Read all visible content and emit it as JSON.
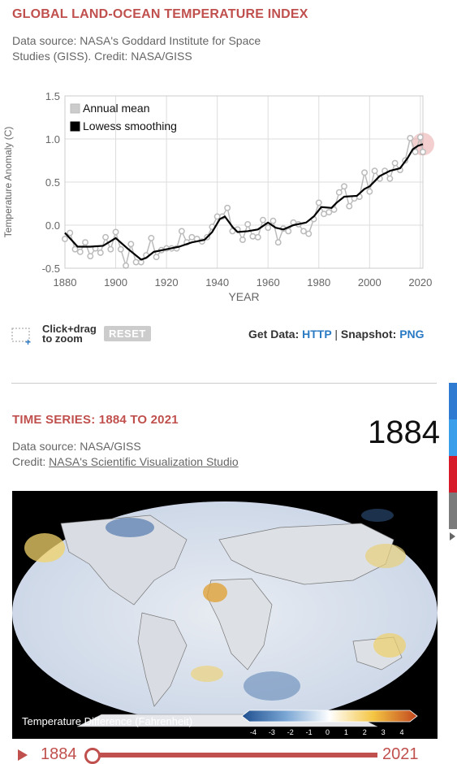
{
  "section1": {
    "title": "GLOBAL LAND-OCEAN TEMPERATURE INDEX",
    "source_line1": "Data source: NASA's Goddard Institute for Space",
    "source_line2": "Studies (GISS). Credit: NASA/GISS"
  },
  "chart_data": {
    "type": "line",
    "ylabel": "Temperature Anomaly (C)",
    "xlabel": "YEAR",
    "xlim": [
      1880,
      2021
    ],
    "ylim": [
      -0.5,
      1.5
    ],
    "xticks": [
      "1880",
      "1900",
      "1920",
      "1940",
      "1960",
      "1980",
      "2000",
      "2020"
    ],
    "yticks": [
      "1.5",
      "1.0",
      "0.5",
      "0.0",
      "-0.5"
    ],
    "legend_position": "top-left",
    "grid": true,
    "series": [
      {
        "name": "Annual mean",
        "color": "#bbbbbb",
        "points": [
          [
            1880,
            -0.16
          ],
          [
            1882,
            -0.09
          ],
          [
            1884,
            -0.28
          ],
          [
            1886,
            -0.31
          ],
          [
            1888,
            -0.2
          ],
          [
            1890,
            -0.36
          ],
          [
            1892,
            -0.27
          ],
          [
            1894,
            -0.32
          ],
          [
            1896,
            -0.14
          ],
          [
            1898,
            -0.28
          ],
          [
            1900,
            -0.08
          ],
          [
            1902,
            -0.28
          ],
          [
            1904,
            -0.47
          ],
          [
            1906,
            -0.22
          ],
          [
            1908,
            -0.43
          ],
          [
            1910,
            -0.43
          ],
          [
            1912,
            -0.35
          ],
          [
            1914,
            -0.15
          ],
          [
            1916,
            -0.37
          ],
          [
            1918,
            -0.29
          ],
          [
            1920,
            -0.27
          ],
          [
            1922,
            -0.27
          ],
          [
            1924,
            -0.27
          ],
          [
            1926,
            -0.07
          ],
          [
            1928,
            -0.2
          ],
          [
            1930,
            -0.14
          ],
          [
            1932,
            -0.16
          ],
          [
            1934,
            -0.19
          ],
          [
            1936,
            -0.14
          ],
          [
            1938,
            -0.02
          ],
          [
            1940,
            0.1
          ],
          [
            1942,
            0.1
          ],
          [
            1944,
            0.2
          ],
          [
            1946,
            -0.07
          ],
          [
            1948,
            -0.05
          ],
          [
            1950,
            -0.17
          ],
          [
            1952,
            0.01
          ],
          [
            1954,
            -0.13
          ],
          [
            1956,
            -0.14
          ],
          [
            1958,
            0.06
          ],
          [
            1960,
            -0.03
          ],
          [
            1962,
            0.05
          ],
          [
            1964,
            -0.2
          ],
          [
            1966,
            -0.04
          ],
          [
            1968,
            -0.07
          ],
          [
            1970,
            0.03
          ],
          [
            1972,
            0.01
          ],
          [
            1974,
            -0.07
          ],
          [
            1976,
            -0.1
          ],
          [
            1978,
            0.07
          ],
          [
            1980,
            0.26
          ],
          [
            1982,
            0.13
          ],
          [
            1984,
            0.15
          ],
          [
            1986,
            0.18
          ],
          [
            1988,
            0.38
          ],
          [
            1990,
            0.45
          ],
          [
            1992,
            0.22
          ],
          [
            1994,
            0.31
          ],
          [
            1996,
            0.33
          ],
          [
            1998,
            0.61
          ],
          [
            2000,
            0.39
          ],
          [
            2002,
            0.63
          ],
          [
            2004,
            0.54
          ],
          [
            2006,
            0.63
          ],
          [
            2008,
            0.54
          ],
          [
            2010,
            0.72
          ],
          [
            2012,
            0.64
          ],
          [
            2014,
            0.75
          ],
          [
            2016,
            1.01
          ],
          [
            2018,
            0.85
          ],
          [
            2020,
            1.02
          ],
          [
            2021,
            0.85
          ]
        ]
      },
      {
        "name": "Lowess smoothing",
        "color": "#000000",
        "points": [
          [
            1880,
            -0.09
          ],
          [
            1885,
            -0.25
          ],
          [
            1890,
            -0.25
          ],
          [
            1895,
            -0.24
          ],
          [
            1900,
            -0.15
          ],
          [
            1905,
            -0.28
          ],
          [
            1910,
            -0.4
          ],
          [
            1912,
            -0.38
          ],
          [
            1915,
            -0.31
          ],
          [
            1920,
            -0.28
          ],
          [
            1925,
            -0.25
          ],
          [
            1930,
            -0.2
          ],
          [
            1935,
            -0.17
          ],
          [
            1938,
            -0.08
          ],
          [
            1941,
            0.07
          ],
          [
            1943,
            0.1
          ],
          [
            1946,
            -0.02
          ],
          [
            1948,
            -0.08
          ],
          [
            1952,
            -0.07
          ],
          [
            1956,
            -0.05
          ],
          [
            1960,
            0.03
          ],
          [
            1963,
            -0.03
          ],
          [
            1966,
            -0.05
          ],
          [
            1970,
            0.0
          ],
          [
            1975,
            0.03
          ],
          [
            1978,
            0.1
          ],
          [
            1981,
            0.21
          ],
          [
            1985,
            0.2
          ],
          [
            1987,
            0.26
          ],
          [
            1990,
            0.33
          ],
          [
            1995,
            0.34
          ],
          [
            1998,
            0.42
          ],
          [
            2000,
            0.45
          ],
          [
            2004,
            0.57
          ],
          [
            2008,
            0.63
          ],
          [
            2012,
            0.66
          ],
          [
            2015,
            0.78
          ],
          [
            2017,
            0.88
          ],
          [
            2019,
            0.92
          ],
          [
            2021,
            0.94
          ]
        ]
      }
    ],
    "highlight_year": 2021
  },
  "zoom_hint": {
    "line1": "Click+drag",
    "line2": "to zoom"
  },
  "reset_label": "RESET",
  "getdata": {
    "label": "Get Data:",
    "http": "HTTP",
    "sep": "|",
    "snapshot": "Snapshot:",
    "png": "PNG"
  },
  "section2": {
    "title": "TIME SERIES: 1884 TO 2021",
    "year": "1884",
    "source_line1": "Data source: NASA/GISS",
    "credit_prefix": "Credit: ",
    "credit_link": "NASA's Scientific Visualization Studio"
  },
  "map": {
    "colorbar_title": "Temperature Difference (Fahrenheit)",
    "colorbar_ticks": [
      "-4",
      "-3",
      "-2",
      "-1",
      "0",
      "1",
      "2",
      "3",
      "4"
    ]
  },
  "timeline": {
    "start": "1884",
    "end": "2021",
    "position": 0
  },
  "colors": {
    "accent": "#c0504d",
    "link": "#2a7ac4"
  }
}
